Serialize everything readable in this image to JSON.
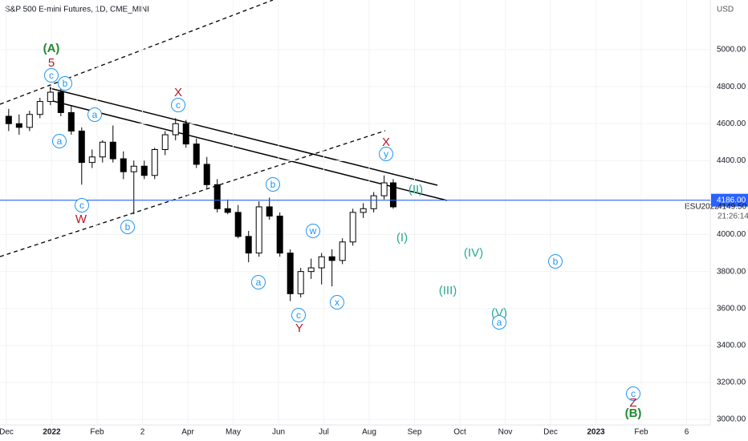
{
  "chart_data": {
    "type": "candlestick",
    "title": "S&P 500 E-mini Futures, 1D, CME_MINI",
    "currency": "USD",
    "symbol": "ESU2022",
    "countdown": "21:26:14",
    "current_price": {
      "value": 4186,
      "label": "4186.00"
    },
    "last_price": {
      "value": 4149.5,
      "label": "4149.50"
    },
    "up_color": "#ffffff",
    "down_color": "#000000",
    "line_color": "#2962ff",
    "x": [
      0.05,
      0.28,
      0.51,
      0.74,
      0.97,
      1.2,
      1.43,
      1.66,
      1.89,
      2.12,
      2.35,
      2.58,
      2.81,
      3.04,
      3.27,
      3.5,
      3.73,
      3.96,
      4.19,
      4.42,
      4.65,
      4.88,
      5.11,
      5.34,
      5.57,
      5.8,
      6.03,
      6.26,
      6.49,
      6.72,
      6.95,
      7.18,
      7.41,
      7.64,
      7.87,
      8.1,
      8.33,
      8.53
    ],
    "open": [
      4640,
      4600,
      4580,
      4650,
      4720,
      4770,
      4660,
      4560,
      4390,
      4420,
      4500,
      4410,
      4340,
      4370,
      4320,
      4460,
      4540,
      4600,
      4490,
      4380,
      4270,
      4140,
      4120,
      3990,
      3900,
      4150,
      4100,
      3900,
      3680,
      3800,
      3820,
      3880,
      3860,
      3960,
      4120,
      4140,
      4210,
      4280
    ],
    "high": [
      4680,
      4650,
      4670,
      4740,
      4800,
      4790,
      4700,
      4580,
      4460,
      4510,
      4590,
      4450,
      4400,
      4400,
      4470,
      4560,
      4630,
      4620,
      4520,
      4420,
      4300,
      4190,
      4160,
      4020,
      4180,
      4200,
      4120,
      3920,
      3820,
      3870,
      3900,
      3920,
      3980,
      4140,
      4170,
      4230,
      4320,
      4300
    ],
    "low": [
      4560,
      4540,
      4560,
      4630,
      4700,
      4640,
      4540,
      4270,
      4360,
      4390,
      4390,
      4300,
      4110,
      4300,
      4300,
      4430,
      4510,
      4470,
      4360,
      4250,
      4120,
      4110,
      3980,
      3850,
      3880,
      4080,
      3880,
      3640,
      3660,
      3760,
      3730,
      3720,
      3840,
      3940,
      4090,
      4120,
      4190,
      4140
    ],
    "close": [
      4600,
      4580,
      4650,
      4720,
      4770,
      4660,
      4560,
      4390,
      4420,
      4500,
      4410,
      4340,
      4370,
      4320,
      4460,
      4540,
      4600,
      4490,
      4380,
      4270,
      4140,
      4120,
      3990,
      3900,
      4150,
      4100,
      3900,
      3680,
      3800,
      3820,
      3880,
      3860,
      3960,
      4120,
      4140,
      4210,
      4280,
      4150
    ],
    "xlim": [
      -0.1416,
      15.522
    ],
    "xticks": [
      {
        "value": 0,
        "label": "Dec"
      },
      {
        "value": 1,
        "label": "2022"
      },
      {
        "value": 2,
        "label": "Feb"
      },
      {
        "value": 3,
        "label": "2"
      },
      {
        "value": 4,
        "label": "Apr"
      },
      {
        "value": 5,
        "label": "May"
      },
      {
        "value": 6,
        "label": "Jun"
      },
      {
        "value": 7,
        "label": "Jul"
      },
      {
        "value": 8,
        "label": "Aug"
      },
      {
        "value": 9,
        "label": "Sep"
      },
      {
        "value": 10,
        "label": "Oct"
      },
      {
        "value": 11,
        "label": "Nov"
      },
      {
        "value": 12,
        "label": "Dec"
      },
      {
        "value": 13,
        "label": "2023"
      },
      {
        "value": 14,
        "label": "Feb"
      },
      {
        "value": 15,
        "label": "6"
      }
    ],
    "ylim": [
      2970,
      5269
    ],
    "yticks": [
      {
        "value": 5000,
        "label": "5000.00"
      },
      {
        "value": 4800,
        "label": "4800.00"
      },
      {
        "value": 4600,
        "label": "4600.00"
      },
      {
        "value": 4400,
        "label": "4400.00"
      },
      {
        "value": 4000,
        "label": "4000.00"
      },
      {
        "value": 3800,
        "label": "3800.00"
      },
      {
        "value": 3600,
        "label": "3600.00"
      },
      {
        "value": 3400,
        "label": "3400.00"
      },
      {
        "value": 3200,
        "label": "3200.00"
      },
      {
        "value": 3000,
        "label": "3000.00"
      }
    ],
    "annotations": [
      "(A)",
      "5",
      "c",
      "b",
      "a",
      "a",
      "c",
      "W",
      "b",
      "X",
      "c",
      "b",
      "a",
      "w",
      "c",
      "Y",
      "x",
      "X",
      "y",
      "(II)",
      "(I)",
      "(IV)",
      "(III)",
      "(V)",
      "a",
      "b",
      "c",
      "Z",
      "(B)"
    ]
  }
}
